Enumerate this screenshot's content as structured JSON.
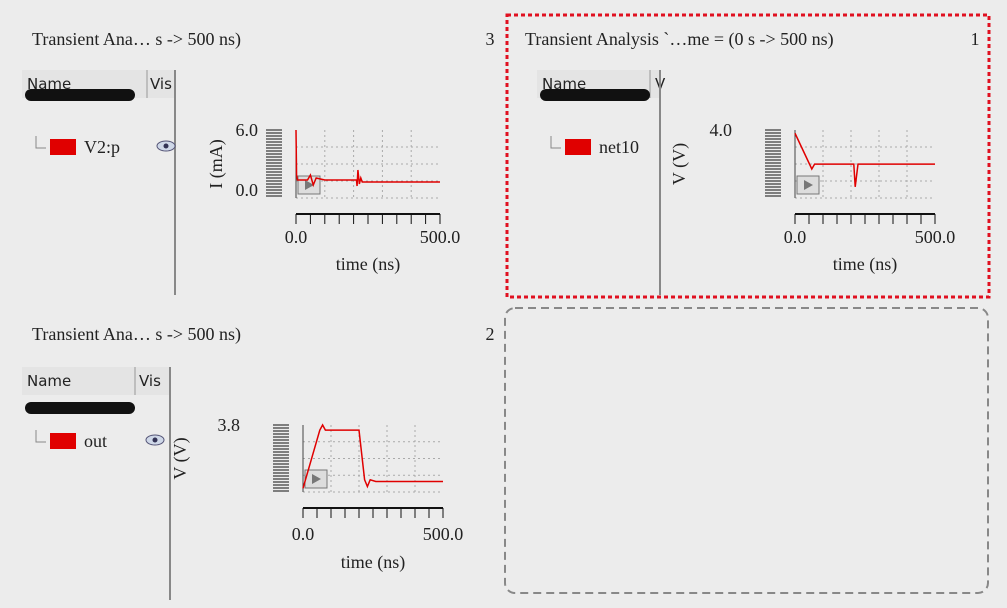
{
  "panels": [
    {
      "title": "Transient Ana… s -> 500 ns)",
      "number": "3",
      "columns": [
        "Name",
        "Vis"
      ],
      "plot": {
        "type": "line",
        "ylabel": "I (mA)",
        "xlabel": "time (ns)",
        "ylim": [
          0,
          6
        ],
        "yticks": [
          {
            "value": 0,
            "label": "0.0"
          },
          {
            "value": 6,
            "label": "6.0"
          }
        ],
        "xlim": [
          0,
          500
        ],
        "xticks": [
          {
            "value": 0,
            "label": "0.0"
          },
          {
            "value": 500,
            "label": "500.0"
          }
        ],
        "series": [
          {
            "name": "V2:p",
            "color": "#e00000",
            "x": [
              0,
              2,
              5,
              40,
              50,
              60,
              70,
              100,
              200,
              210,
              212,
              215,
              220,
              225,
              230,
              300,
              500
            ],
            "values": [
              6,
              1.5,
              1,
              1,
              1.5,
              0.5,
              1.2,
              1,
              1,
              1,
              0.4,
              2,
              0.6,
              1.2,
              0.8,
              0.8,
              0.8
            ]
          }
        ]
      }
    },
    {
      "title": "Transient Analysis `…me = (0 s -> 500 ns)",
      "number": "1",
      "columns": [
        "Name",
        "V"
      ],
      "plot": {
        "type": "line",
        "ylabel": "V (V)",
        "xlabel": "time (ns)",
        "ylim": [
          0,
          4
        ],
        "yticks": [
          {
            "value": 4,
            "label": "4.0"
          }
        ],
        "xlim": [
          0,
          500
        ],
        "xticks": [
          {
            "value": 0,
            "label": "0.0"
          },
          {
            "value": 500,
            "label": "500.0"
          }
        ],
        "series": [
          {
            "name": "net10",
            "color": "#e00000",
            "x": [
              0,
              60,
              70,
              200,
              210,
              215,
              225,
              500
            ],
            "values": [
              3.8,
              1.6,
              1.9,
              1.9,
              1.9,
              0.5,
              1.9,
              1.9
            ]
          }
        ]
      }
    },
    {
      "title": "Transient Ana… s -> 500 ns)",
      "number": "2",
      "columns": [
        "Name",
        "Vis"
      ],
      "plot": {
        "type": "line",
        "ylabel": "V (V)",
        "xlabel": "time (ns)",
        "ylim": [
          0,
          3.8
        ],
        "yticks": [
          {
            "value": 3.8,
            "label": "3.8"
          }
        ],
        "xlim": [
          0,
          500
        ],
        "xticks": [
          {
            "value": 0,
            "label": "0.0"
          },
          {
            "value": 500,
            "label": "500.0"
          }
        ],
        "series": [
          {
            "name": "out",
            "color": "#e00000",
            "x": [
              0,
              60,
              70,
              80,
              200,
              220,
              230,
              240,
              260,
              500
            ],
            "values": [
              0.1,
              3.5,
              3.8,
              3.5,
              3.5,
              0.6,
              0.2,
              0.6,
              0.5,
              0.5
            ]
          }
        ]
      }
    }
  ]
}
